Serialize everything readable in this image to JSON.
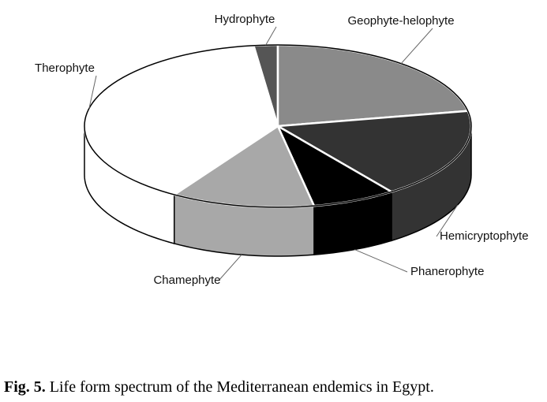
{
  "chart_data": {
    "type": "pie",
    "three_d": true,
    "categories": [
      "Hydrophyte",
      "Geophyte-helophyte",
      "Hemicryptophyte",
      "Phanerophyte",
      "Chamephyte",
      "Therophyte"
    ],
    "values": [
      2,
      22,
      18,
      7,
      12,
      39
    ],
    "colors": [
      "#555555",
      "#8a8a8a",
      "#333333",
      "#000000",
      "#a8a8a8",
      "#ffffff"
    ]
  },
  "caption": {
    "label": "Fig. 5.",
    "text": "Life form spectrum of the Mediterranean endemics in Egypt."
  }
}
